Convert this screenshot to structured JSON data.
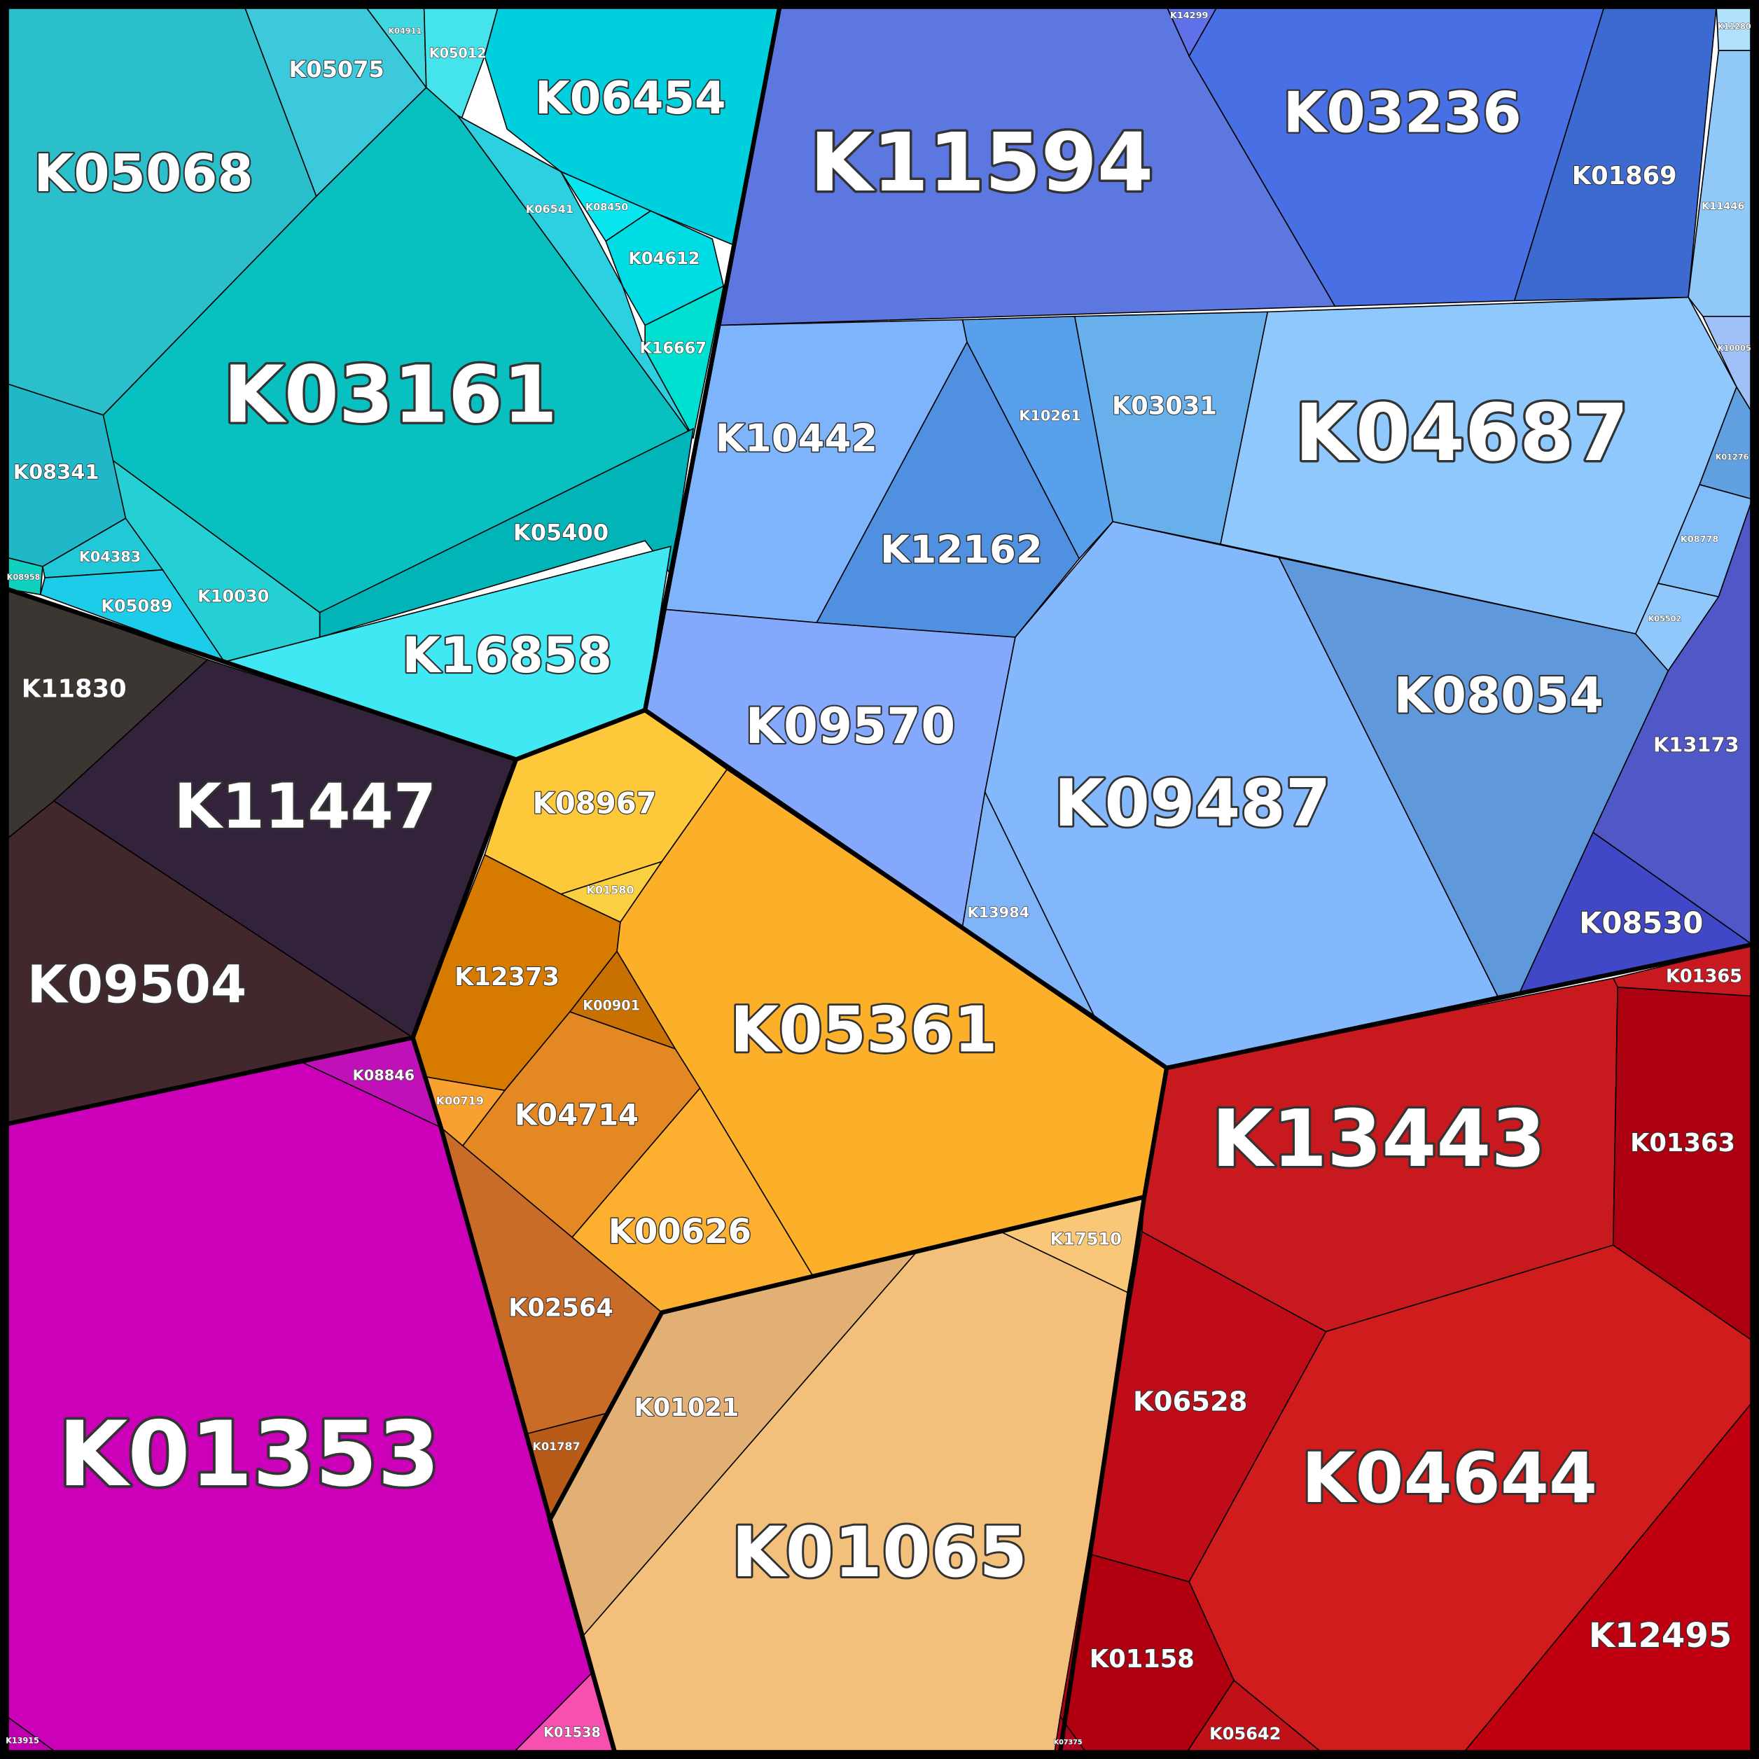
{
  "cells": [
    {
      "label": "K05068"
    },
    {
      "label": "K05075"
    },
    {
      "label": "K04911"
    },
    {
      "label": "K05012"
    },
    {
      "label": "K06454"
    },
    {
      "label": "K03161"
    },
    {
      "label": "K06541"
    },
    {
      "label": "K08450"
    },
    {
      "label": "K04612"
    },
    {
      "label": "K16667"
    },
    {
      "label": "K05400"
    },
    {
      "label": "K16858"
    },
    {
      "label": "K10030"
    },
    {
      "label": "K08341"
    },
    {
      "label": "K04383"
    },
    {
      "label": "K05089"
    },
    {
      "label": "K08958"
    },
    {
      "label": "K14299"
    },
    {
      "label": "K11594"
    },
    {
      "label": "K03236"
    },
    {
      "label": "K01869"
    },
    {
      "label": "K11446"
    },
    {
      "label": "K11280"
    },
    {
      "label": "K10005"
    },
    {
      "label": "K10442"
    },
    {
      "label": "K10261"
    },
    {
      "label": "K12162"
    },
    {
      "label": "K03031"
    },
    {
      "label": "K04687"
    },
    {
      "label": "K01276"
    },
    {
      "label": "K08778"
    },
    {
      "label": "K05502"
    },
    {
      "label": "K13173"
    },
    {
      "label": "K08530"
    },
    {
      "label": "K08054"
    },
    {
      "label": "K09487"
    },
    {
      "label": "K09570"
    },
    {
      "label": "K13984"
    },
    {
      "label": "K11830"
    },
    {
      "label": "K11447"
    },
    {
      "label": "K09504"
    },
    {
      "label": "K08967"
    },
    {
      "label": "K01580"
    },
    {
      "label": "K12373"
    },
    {
      "label": "K00901"
    },
    {
      "label": "K04714"
    },
    {
      "label": "K00719"
    },
    {
      "label": "K00626"
    },
    {
      "label": "K05361"
    },
    {
      "label": "K02564"
    },
    {
      "label": "K01787"
    },
    {
      "label": "K01021"
    },
    {
      "label": "K01065"
    },
    {
      "label": "K17510"
    },
    {
      "label": "K08846"
    },
    {
      "label": "K01353"
    },
    {
      "label": "K13915"
    },
    {
      "label": "K01538"
    },
    {
      "label": "K01365"
    },
    {
      "label": "K13443"
    },
    {
      "label": "K01363"
    },
    {
      "label": "K06528"
    },
    {
      "label": "K04644"
    },
    {
      "label": "K12495"
    },
    {
      "label": "K01158"
    },
    {
      "label": "K05642"
    },
    {
      "label": "K07375"
    }
  ]
}
